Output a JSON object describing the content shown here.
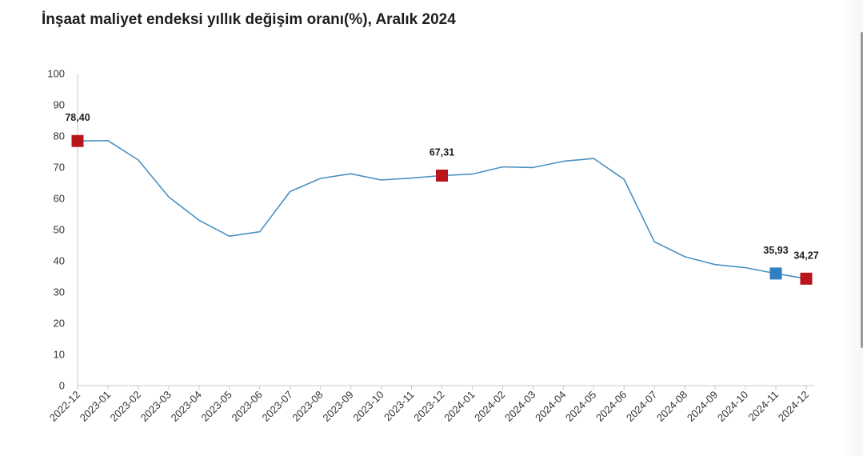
{
  "page": {
    "title": "İnşaat maliyet endeksi yıllık değişim oranı(%), Aralık 2024"
  },
  "colors": {
    "line": "#4a90c2",
    "marker_red": "#b8161c",
    "marker_blue": "#2f7fc1",
    "axis": "#c8c8c8"
  },
  "chart_data": {
    "type": "line",
    "title": "İnşaat maliyet endeksi yıllık değişim oranı(%), Aralık 2024",
    "xlabel": "",
    "ylabel": "",
    "ylim": [
      0,
      100
    ],
    "yticks": [
      0,
      10,
      20,
      30,
      40,
      50,
      60,
      70,
      80,
      90,
      100
    ],
    "grid": false,
    "categories": [
      "2022-12",
      "2023-01",
      "2023-02",
      "2023-03",
      "2023-04",
      "2023-05",
      "2023-06",
      "2023-07",
      "2023-08",
      "2023-09",
      "2023-10",
      "2023-11",
      "2023-12",
      "2024-01",
      "2024-02",
      "2024-03",
      "2024-04",
      "2024-05",
      "2024-06",
      "2024-07",
      "2024-08",
      "2024-09",
      "2024-10",
      "2024-11",
      "2024-12"
    ],
    "series": [
      {
        "values": [
          78.4,
          78.5,
          72.3,
          60.5,
          53.0,
          47.9,
          49.3,
          62.2,
          66.4,
          67.9,
          65.9,
          66.5,
          67.31,
          67.8,
          70.1,
          69.9,
          71.9,
          72.8,
          66.1,
          46.1,
          41.3,
          38.8,
          37.8,
          35.93,
          34.27
        ]
      }
    ],
    "highlighted_points": [
      {
        "category": "2022-12",
        "value": 78.4,
        "label": "78,40",
        "color": "red"
      },
      {
        "category": "2023-12",
        "value": 67.31,
        "label": "67,31",
        "color": "red"
      },
      {
        "category": "2024-11",
        "value": 35.93,
        "label": "35,93",
        "color": "blue"
      },
      {
        "category": "2024-12",
        "value": 34.27,
        "label": "34,27",
        "color": "red"
      }
    ]
  }
}
